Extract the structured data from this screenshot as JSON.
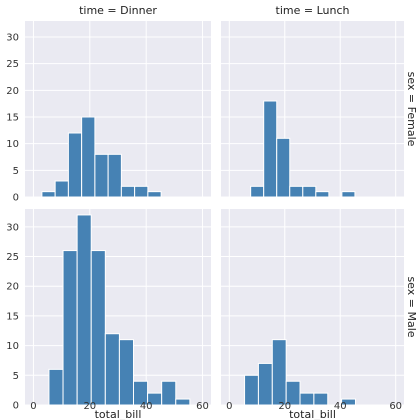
{
  "chart_data": {
    "type": "bar",
    "layout": "facet-grid",
    "x_label": "total_bill",
    "xlim": [
      -3,
      63
    ],
    "ylim": [
      0,
      33
    ],
    "x_ticks": [
      0,
      20,
      40,
      60
    ],
    "y_ticks": [
      0,
      5,
      10,
      15,
      20,
      25,
      30
    ],
    "grid": true,
    "bin_edges": [
      0,
      5,
      10,
      15,
      20,
      25,
      30,
      35,
      40,
      45,
      50,
      55,
      60
    ],
    "column_titles": [
      "time = Dinner",
      "time = Lunch"
    ],
    "row_titles": [
      "sex = Female",
      "sex = Male"
    ],
    "bar_color": "#4682b4",
    "panel_background": "#eaeaf2",
    "panels": [
      {
        "row": 0,
        "col": 0,
        "bins": [
          {
            "x0": 3,
            "x1": 7.7,
            "count": 1
          },
          {
            "x0": 7.7,
            "x1": 12.4,
            "count": 3
          },
          {
            "x0": 12.4,
            "x1": 17.1,
            "count": 12
          },
          {
            "x0": 17.1,
            "x1": 21.8,
            "count": 15
          },
          {
            "x0": 21.8,
            "x1": 26.5,
            "count": 8
          },
          {
            "x0": 26.5,
            "x1": 31.2,
            "count": 8
          },
          {
            "x0": 31.2,
            "x1": 35.9,
            "count": 2
          },
          {
            "x0": 35.9,
            "x1": 40.6,
            "count": 2
          },
          {
            "x0": 40.6,
            "x1": 45.3,
            "count": 1
          }
        ]
      },
      {
        "row": 0,
        "col": 1,
        "bins": [
          {
            "x0": 7.7,
            "x1": 12.4,
            "count": 2
          },
          {
            "x0": 12.4,
            "x1": 17.1,
            "count": 18
          },
          {
            "x0": 17.1,
            "x1": 21.8,
            "count": 11
          },
          {
            "x0": 21.8,
            "x1": 26.5,
            "count": 2
          },
          {
            "x0": 26.5,
            "x1": 31.2,
            "count": 2
          },
          {
            "x0": 31.2,
            "x1": 35.9,
            "count": 1
          },
          {
            "x0": 40.6,
            "x1": 45.3,
            "count": 1
          }
        ]
      },
      {
        "row": 1,
        "col": 0,
        "bins": [
          {
            "x0": 5.5,
            "x1": 10.5,
            "count": 6
          },
          {
            "x0": 10.5,
            "x1": 15.5,
            "count": 26
          },
          {
            "x0": 15.5,
            "x1": 20.5,
            "count": 32
          },
          {
            "x0": 20.5,
            "x1": 25.5,
            "count": 26
          },
          {
            "x0": 25.5,
            "x1": 30.5,
            "count": 12
          },
          {
            "x0": 30.5,
            "x1": 35.5,
            "count": 11
          },
          {
            "x0": 35.5,
            "x1": 40.5,
            "count": 4
          },
          {
            "x0": 40.5,
            "x1": 45.5,
            "count": 2
          },
          {
            "x0": 45.5,
            "x1": 50.5,
            "count": 4
          },
          {
            "x0": 50.5,
            "x1": 55.5,
            "count": 1
          }
        ]
      },
      {
        "row": 1,
        "col": 1,
        "bins": [
          {
            "x0": 5.5,
            "x1": 10.5,
            "count": 5
          },
          {
            "x0": 10.5,
            "x1": 15.5,
            "count": 7
          },
          {
            "x0": 15.5,
            "x1": 20.5,
            "count": 11
          },
          {
            "x0": 20.5,
            "x1": 25.5,
            "count": 4
          },
          {
            "x0": 25.5,
            "x1": 30.5,
            "count": 2
          },
          {
            "x0": 30.5,
            "x1": 35.5,
            "count": 2
          },
          {
            "x0": 40.5,
            "x1": 45.5,
            "count": 1
          }
        ]
      }
    ]
  }
}
